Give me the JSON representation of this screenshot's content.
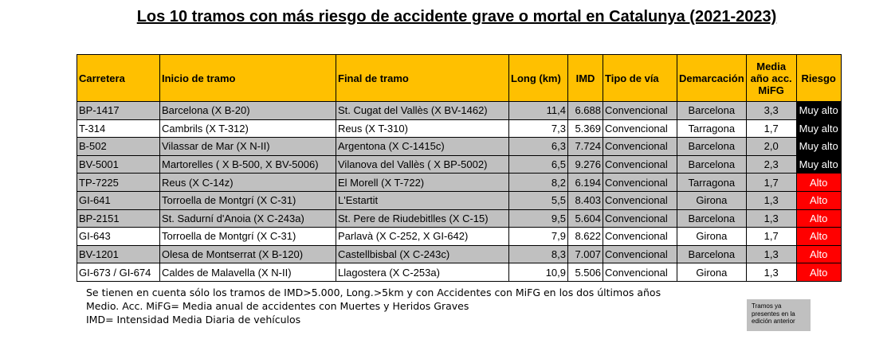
{
  "title": "Los 10 tramos con más riesgo de accidente grave o mortal en Catalunya (2021-2023)",
  "table": {
    "headers": {
      "carretera": "Carretera",
      "inicio": "Inicio de tramo",
      "final": "Final de tramo",
      "long": "Long (km)",
      "imd": "IMD",
      "tipo": "Tipo de vía",
      "demarcacion": "Demarcación",
      "media_1": "Media",
      "media_2": "año acc.",
      "media_3": "MiFG",
      "riesgo": "Riesgo"
    },
    "rows": [
      {
        "carretera": "BP-1417",
        "inicio": "Barcelona (X B-20)",
        "final": "St. Cugat del Vallès (X BV-1462)",
        "long": "11,4",
        "imd": "6.688",
        "tipo": "Convencional",
        "demarcacion": "Barcelona",
        "media": "3,3",
        "riesgo": "Muy alto"
      },
      {
        "carretera": "T-314",
        "inicio": "Cambrils (X T-312)",
        "final": "Reus (X T-310)",
        "long": "7,3",
        "imd": "5.369",
        "tipo": "Convencional",
        "demarcacion": "Tarragona",
        "media": "1,7",
        "riesgo": "Muy alto"
      },
      {
        "carretera": "B-502",
        "inicio": "Vilassar de Mar (X N-II)",
        "final": "Argentona (X C-1415c)",
        "long": "6,3",
        "imd": "7.724",
        "tipo": "Convencional",
        "demarcacion": "Barcelona",
        "media": "2,0",
        "riesgo": "Muy alto"
      },
      {
        "carretera": "BV-5001",
        "inicio": "Martorelles ( X B-500, X BV-5006)",
        "final": "Vilanova del Vallès ( X BP-5002)",
        "long": "6,5",
        "imd": "9.276",
        "tipo": "Convencional",
        "demarcacion": "Barcelona",
        "media": "2,3",
        "riesgo": "Muy alto"
      },
      {
        "carretera": "TP-7225",
        "inicio": "Reus (X C-14z)",
        "final": "El Morell (X T-722)",
        "long": "8,2",
        "imd": "6.194",
        "tipo": "Convencional",
        "demarcacion": "Tarragona",
        "media": "1,7",
        "riesgo": "Alto"
      },
      {
        "carretera": "GI-641",
        "inicio": "Torroella de Montgrí (X C-31)",
        "final": "L'Estartit",
        "long": "5,5",
        "imd": "8.403",
        "tipo": "Convencional",
        "demarcacion": "Girona",
        "media": "1,3",
        "riesgo": "Alto"
      },
      {
        "carretera": "BP-2151",
        "inicio": "St. Sadurní d'Anoia (X C-243a)",
        "final": "St. Pere de Riudebitlles (X C-15)",
        "long": "9,5",
        "imd": "5.604",
        "tipo": "Convencional",
        "demarcacion": "Barcelona",
        "media": "1,3",
        "riesgo": "Alto"
      },
      {
        "carretera": "GI-643",
        "inicio": "Torroella de Montgrí (X C-31)",
        "final": "Parlavà (X C-252, X GI-642)",
        "long": "7,9",
        "imd": "8.622",
        "tipo": "Convencional",
        "demarcacion": "Girona",
        "media": "1,7",
        "riesgo": "Alto"
      },
      {
        "carretera": "BV-1201",
        "inicio": "Olesa de Montserrat (X B-120)",
        "final": "Castellbisbal (X C-243c)",
        "long": "8,3",
        "imd": "7.007",
        "tipo": "Convencional",
        "demarcacion": "Barcelona",
        "media": "1,3",
        "riesgo": "Alto"
      },
      {
        "carretera": "GI-673 / GI-674",
        "inicio": "Caldes de Malavella (X N-II)",
        "final": "Llagostera (X C-253a)",
        "long": "10,9",
        "imd": "5.506",
        "tipo": "Convencional",
        "demarcacion": "Girona",
        "media": "1,3",
        "riesgo": "Alto"
      }
    ]
  },
  "notes": [
    "Se tienen en cuenta sólo los tramos de IMD>5.000, Long.>5km y con Accidentes con MiFG en los dos últimos años",
    "Medio. Acc. MiFG= Media anual de accidentes con Muertes y Heridos Graves",
    "IMD= Intensidad Media Diaria de vehículos"
  ],
  "legend": {
    "line1": "Tramos ya",
    "line2": "presentes en la",
    "line3": "edición anterior",
    "color": "#c0c0c0"
  },
  "colors": {
    "header": "#ffc000",
    "previous_edition_row": "#c0c0c0",
    "muy_alto": "#000000",
    "alto": "#ff0000"
  }
}
